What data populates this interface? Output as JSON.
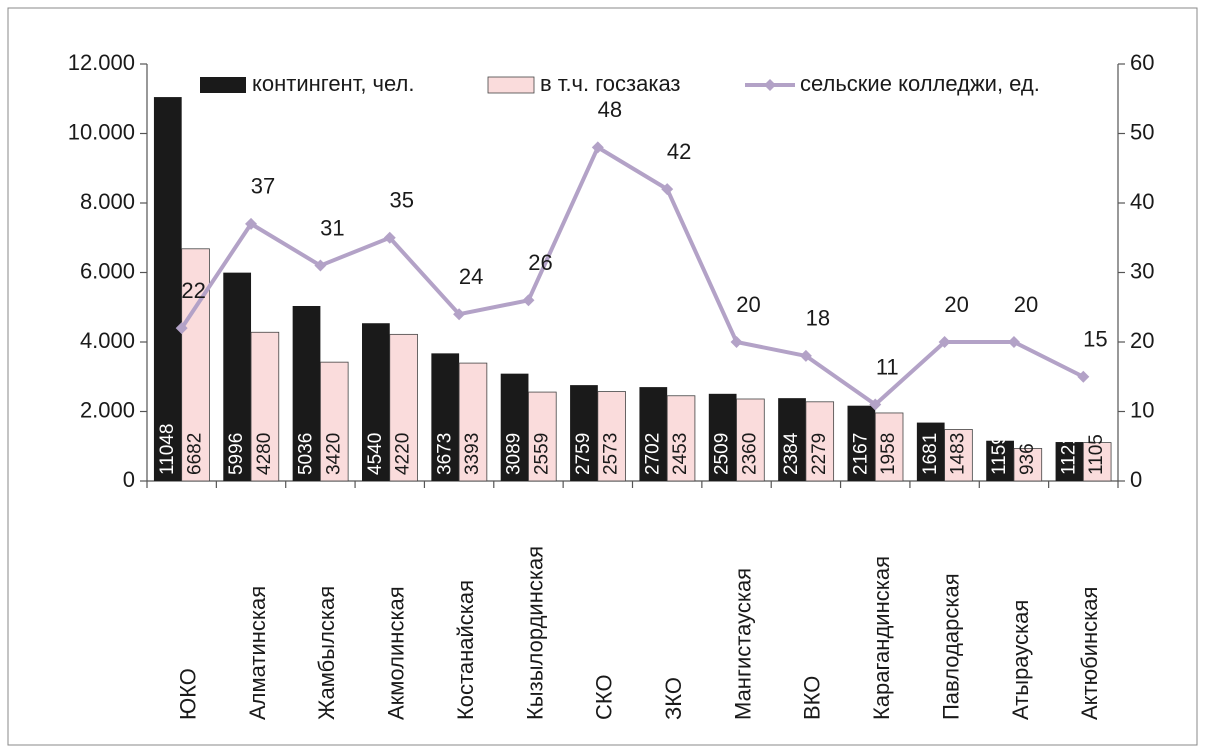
{
  "chart_data": {
    "type": "bar",
    "categories": [
      "ЮКО",
      "Алматинская",
      "Жамбылская",
      "Акмолинская",
      "Костанайская",
      "Кызылординская",
      "СКО",
      "ЗКО",
      "Мангистауская",
      "ВКО",
      "Карагандинская",
      "Павлодарская",
      "Атырауская",
      "Актюбинская"
    ],
    "series": [
      {
        "name": "контингент, чел.",
        "color": "#1a1a1a",
        "values": [
          11048,
          5996,
          5036,
          4540,
          3673,
          3089,
          2759,
          2702,
          2509,
          2384,
          2167,
          1681,
          1159,
          1121
        ]
      },
      {
        "name": "в т.ч. госзаказ",
        "color": "#fadcdc",
        "values": [
          6682,
          4280,
          3420,
          4220,
          3393,
          2559,
          2573,
          2453,
          2360,
          2279,
          1958,
          1483,
          936,
          1105
        ]
      },
      {
        "name": "сельские колледжи, ед.",
        "color": "#b3a2c7",
        "type": "line",
        "axis": "y2",
        "values": [
          22,
          37,
          31,
          35,
          24,
          26,
          48,
          42,
          20,
          18,
          11,
          20,
          20,
          15
        ]
      }
    ],
    "ylim": [
      0,
      12000
    ],
    "yticks": [
      0,
      {
        "value": 2000,
        "label": "2.000"
      },
      {
        "value": 4000,
        "label": "4.000"
      },
      {
        "value": 6000,
        "label": "6.000"
      },
      {
        "value": 8000,
        "label": "8.000"
      },
      {
        "value": 10000,
        "label": "10.000"
      },
      {
        "value": 12000,
        "label": "12.000"
      }
    ],
    "y2lim": [
      0,
      60
    ],
    "y2ticks": [
      0,
      10,
      20,
      30,
      40,
      50,
      60
    ],
    "legend": "top"
  }
}
